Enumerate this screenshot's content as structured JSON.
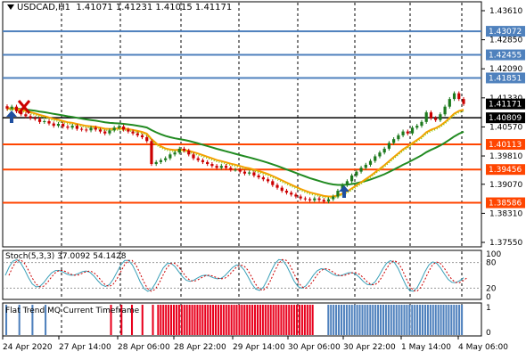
{
  "title": {
    "symbol_timeframe": "USDCAD,H1",
    "ohlc": "1.41071 1.41231 1.41015 1.41171"
  },
  "price_axis": {
    "ticks": [
      "1.43610",
      "1.42850",
      "1.42090",
      "1.41330",
      "1.40570",
      "1.39810",
      "1.39070",
      "1.38310",
      "1.37550"
    ]
  },
  "price_labels": {
    "blue_levels": [
      "1.43072",
      "1.42455",
      "1.41851"
    ],
    "current": "1.41171",
    "black_level": "1.40809",
    "orange_levels": [
      "1.40113",
      "1.39456",
      "1.38586"
    ]
  },
  "stochastic": {
    "label": "Stoch(5,3,3) 37.0092 54.1428",
    "levels": [
      "100",
      "80",
      "20",
      "0"
    ]
  },
  "flat_trend": {
    "label": "Flat Trend MQ Current Timeframe",
    "levels": [
      "1",
      "0"
    ]
  },
  "time_axis": {
    "labels": [
      "24 Apr 2020",
      "27 Apr 14:00",
      "28 Apr 06:00",
      "28 Apr 22:00",
      "29 Apr 14:00",
      "30 Apr 06:00",
      "30 Apr 22:00",
      "1 May 14:00",
      "4 May 06:00"
    ]
  },
  "colors": {
    "bull_candle": "#1e7a1e",
    "bear_candle": "#cc0000",
    "ma_fast": "#f5a000",
    "ma_slow": "#228b22",
    "ma_dotted": "#7fcc00",
    "blue_level": "#4f81bd",
    "orange_level": "#ff4500",
    "flat_red": "#e8001c",
    "flat_blue": "#4f81bd"
  },
  "icons": {
    "signals": [
      "sell-arrow-icon",
      "buy-arrow-icon",
      "buy-arrow-icon"
    ]
  }
}
